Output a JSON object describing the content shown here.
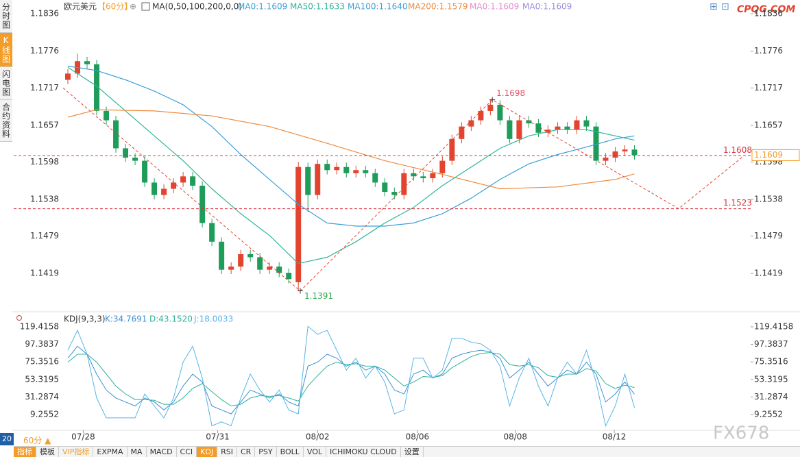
{
  "sidebar_tabs": [
    {
      "label": "分时图"
    },
    {
      "label": "K线图",
      "active": true
    },
    {
      "label": "闪电图"
    },
    {
      "label": "合约资料"
    }
  ],
  "brand": "CPQG.COM",
  "watermark": "FX678",
  "zoom": 20,
  "period_button": "60分 ▲",
  "toolbar": [
    {
      "label": "指标",
      "active": true
    },
    {
      "label": "模板"
    },
    {
      "label": "VIP指标",
      "highlight": true
    },
    {
      "label": "EXPMA"
    },
    {
      "label": "MA"
    },
    {
      "label": "MACD"
    },
    {
      "label": "CCI"
    },
    {
      "label": "KDJ",
      "active": true
    },
    {
      "label": "RSI"
    },
    {
      "label": "CR"
    },
    {
      "label": "PSY"
    },
    {
      "label": "BOLL"
    },
    {
      "label": "VOL"
    },
    {
      "label": "ICHIMOKU CLOUD"
    },
    {
      "label": "设置"
    }
  ],
  "chart_data": [
    {
      "type": "candlestick",
      "title": "欧元美元",
      "period": "【60分】",
      "indicator": "MA(0,50,100,200,0,0)",
      "legend": [
        {
          "name": "MA0:1.1609",
          "color": "#3a9fd8"
        },
        {
          "name": "MA50:1.1633",
          "color": "#2fb39a"
        },
        {
          "name": "MA100:1.1640",
          "color": "#3a9fd8"
        },
        {
          "name": "MA200:1.1579",
          "color": "#f08a3c"
        },
        {
          "name": "MA0:1.1609",
          "color": "#e78ad0"
        },
        {
          "name": "MA0:1.1609",
          "color": "#9a8ae0"
        }
      ],
      "up_color": "#e2442f",
      "down_color": "#1e9c5a",
      "open": [
        1.173,
        1.174,
        1.176,
        1.1755,
        1.168,
        1.1665,
        1.162,
        1.1605,
        1.16,
        1.1565,
        1.1545,
        1.1555,
        1.1565,
        1.1575,
        1.156,
        1.15,
        1.147,
        1.1425,
        1.143,
        1.145,
        1.1445,
        1.1425,
        1.143,
        1.142,
        1.1405,
        1.159,
        1.1545,
        1.1595,
        1.1585,
        1.159,
        1.158,
        1.1585,
        1.158,
        1.1565,
        1.155,
        1.1545,
        1.158,
        1.1575,
        1.1572,
        1.158,
        1.16,
        1.1635,
        1.1655,
        1.1665,
        1.168,
        1.169,
        1.1665,
        1.1635,
        1.1665,
        1.166,
        1.1645,
        1.165,
        1.1655,
        1.165,
        1.1665,
        1.1655,
        1.16,
        1.1605,
        1.1615,
        1.1618
      ],
      "high": [
        1.1747,
        1.1772,
        1.1767,
        1.1762,
        1.1687,
        1.1672,
        1.1627,
        1.1612,
        1.1607,
        1.1572,
        1.1562,
        1.1572,
        1.1582,
        1.1582,
        1.1567,
        1.1507,
        1.1477,
        1.1437,
        1.1457,
        1.1457,
        1.1452,
        1.1437,
        1.1437,
        1.1427,
        1.1598,
        1.1597,
        1.1602,
        1.1602,
        1.1597,
        1.1597,
        1.1592,
        1.1592,
        1.1587,
        1.1572,
        1.1557,
        1.1587,
        1.1587,
        1.1582,
        1.1587,
        1.1607,
        1.1642,
        1.1662,
        1.1672,
        1.1687,
        1.1698,
        1.1697,
        1.1672,
        1.1672,
        1.1672,
        1.1667,
        1.1657,
        1.1662,
        1.1662,
        1.1672,
        1.1672,
        1.1662,
        1.1612,
        1.1622,
        1.1625,
        1.1625
      ],
      "low": [
        1.1723,
        1.1733,
        1.1748,
        1.1673,
        1.1658,
        1.1613,
        1.1598,
        1.1593,
        1.1558,
        1.1538,
        1.1538,
        1.1548,
        1.1558,
        1.1553,
        1.1493,
        1.1463,
        1.1418,
        1.1418,
        1.1423,
        1.1438,
        1.1418,
        1.1418,
        1.1413,
        1.1403,
        1.1391,
        1.1518,
        1.1538,
        1.1578,
        1.1578,
        1.1573,
        1.1573,
        1.1573,
        1.1558,
        1.1543,
        1.1538,
        1.1538,
        1.1568,
        1.1565,
        1.1565,
        1.1573,
        1.1593,
        1.1628,
        1.1648,
        1.1658,
        1.1673,
        1.1658,
        1.1628,
        1.1628,
        1.1653,
        1.1638,
        1.1638,
        1.1643,
        1.1643,
        1.1643,
        1.1648,
        1.1593,
        1.1593,
        1.1598,
        1.1608,
        1.1602
      ],
      "close": [
        1.174,
        1.176,
        1.1755,
        1.168,
        1.1665,
        1.162,
        1.1605,
        1.16,
        1.1565,
        1.1545,
        1.1555,
        1.1565,
        1.1575,
        1.156,
        1.15,
        1.147,
        1.1425,
        1.143,
        1.145,
        1.1445,
        1.1425,
        1.143,
        1.142,
        1.141,
        1.159,
        1.1545,
        1.1595,
        1.1585,
        1.159,
        1.158,
        1.1585,
        1.158,
        1.1565,
        1.155,
        1.1545,
        1.158,
        1.1575,
        1.1572,
        1.158,
        1.16,
        1.1635,
        1.1655,
        1.1665,
        1.168,
        1.169,
        1.1665,
        1.1635,
        1.1665,
        1.166,
        1.1645,
        1.165,
        1.1655,
        1.165,
        1.1665,
        1.1655,
        1.16,
        1.1605,
        1.1615,
        1.1618,
        1.1609
      ],
      "series": [
        {
          "color": "#2fb39a",
          "x": [
            0,
            3,
            6,
            9,
            12,
            15,
            18,
            21,
            24,
            27,
            30,
            33,
            36,
            39,
            42,
            45,
            48,
            51,
            54,
            57,
            59
          ],
          "values": [
            1.175,
            1.172,
            1.168,
            1.164,
            1.16,
            1.1555,
            1.1515,
            1.148,
            1.1435,
            1.1445,
            1.147,
            1.15,
            1.1525,
            1.156,
            1.159,
            1.162,
            1.164,
            1.165,
            1.165,
            1.164,
            1.1633
          ]
        },
        {
          "color": "#3a9fd8",
          "x": [
            0,
            3,
            6,
            9,
            12,
            15,
            18,
            21,
            24,
            27,
            30,
            33,
            36,
            39,
            42,
            45,
            48,
            51,
            54,
            57,
            59
          ],
          "values": [
            1.1752,
            1.1745,
            1.173,
            1.1712,
            1.169,
            1.1655,
            1.161,
            1.157,
            1.153,
            1.15,
            1.1495,
            1.1495,
            1.15,
            1.1515,
            1.154,
            1.157,
            1.1595,
            1.161,
            1.1622,
            1.1635,
            1.164
          ]
        },
        {
          "color": "#f08a3c",
          "x": [
            0,
            3,
            9,
            15,
            21,
            27,
            33,
            39,
            45,
            51,
            57,
            59
          ],
          "values": [
            1.167,
            1.1682,
            1.168,
            1.1672,
            1.1655,
            1.1628,
            1.16,
            1.1578,
            1.1555,
            1.1558,
            1.157,
            1.1579
          ]
        }
      ],
      "trendline": {
        "color": "#e2442f",
        "x": [
          -0.5,
          24.2,
          44.2,
          63.6,
          70.4
        ],
        "values": [
          1.1717,
          1.1391,
          1.1698,
          1.1523,
          1.1608
        ]
      },
      "hlines": [
        1.1608,
        1.1523
      ],
      "hline_color": "#d9303e",
      "last_price": 1.1609,
      "last_color": "#f39c28",
      "annotations": [
        {
          "x": 44.2,
          "value": 1.1698,
          "color": "#e8506a"
        },
        {
          "x": 24.2,
          "value": 1.1391,
          "color": "#2aa84a"
        }
      ],
      "xlim": [
        -0.5,
        71.1
      ],
      "ylim": [
        1.1363,
        1.1845
      ],
      "yticks": [
        1.1836,
        1.1776,
        1.1717,
        1.1657,
        1.1598,
        1.1538,
        1.1479,
        1.1419
      ]
    },
    {
      "type": "kdj",
      "title": "KDJ(9,3,3)",
      "series": [
        {
          "name": "K:34.7691",
          "color": "#3c8fd4",
          "values": [
            80,
            95,
            85,
            60,
            40,
            30,
            25,
            20,
            30,
            25,
            15,
            25,
            45,
            60,
            50,
            20,
            15,
            10,
            25,
            40,
            35,
            30,
            35,
            25,
            20,
            70,
            75,
            85,
            80,
            70,
            75,
            65,
            70,
            60,
            40,
            35,
            60,
            65,
            55,
            60,
            80,
            85,
            88,
            90,
            88,
            80,
            55,
            65,
            75,
            60,
            45,
            55,
            65,
            60,
            75,
            60,
            25,
            35,
            50,
            34.7691
          ]
        },
        {
          "name": "D:43.1520",
          "color": "#2cb09a",
          "values": [
            75,
            85,
            85,
            75,
            60,
            45,
            35,
            28,
            28,
            27,
            22,
            22,
            30,
            42,
            48,
            38,
            28,
            20,
            22,
            30,
            33,
            32,
            33,
            30,
            26,
            45,
            58,
            70,
            75,
            72,
            73,
            70,
            70,
            65,
            55,
            45,
            50,
            57,
            56,
            58,
            68,
            75,
            82,
            86,
            87,
            85,
            72,
            70,
            72,
            68,
            58,
            56,
            60,
            60,
            67,
            64,
            48,
            42,
            46,
            43.152
          ]
        },
        {
          "name": "J:18.0033",
          "color": "#56b4e9",
          "values": [
            90,
            115,
            85,
            30,
            5,
            5,
            5,
            5,
            35,
            20,
            5,
            30,
            75,
            95,
            55,
            -5,
            0,
            -5,
            30,
            60,
            40,
            25,
            40,
            15,
            10,
            120,
            110,
            115,
            90,
            65,
            80,
            55,
            70,
            50,
            10,
            15,
            80,
            80,
            55,
            65,
            105,
            105,
            100,
            98,
            90,
            70,
            20,
            55,
            80,
            45,
            20,
            55,
            75,
            60,
            90,
            50,
            -5,
            20,
            60,
            18.0033
          ]
        }
      ],
      "xlim": [
        -0.5,
        71.1
      ],
      "ylim": [
        -8,
        132.3
      ],
      "yticks": [
        119.4158,
        97.3837,
        75.3516,
        53.3195,
        31.2874,
        9.2552
      ],
      "xticks": [
        {
          "value": 1.6,
          "label": "07/28"
        },
        {
          "value": 15.6,
          "label": "07/31"
        },
        {
          "value": 26,
          "label": "08/02"
        },
        {
          "value": 36.4,
          "label": "08/06"
        },
        {
          "value": 46.6,
          "label": "08/08"
        },
        {
          "value": 56.9,
          "label": "08/12"
        }
      ]
    }
  ]
}
